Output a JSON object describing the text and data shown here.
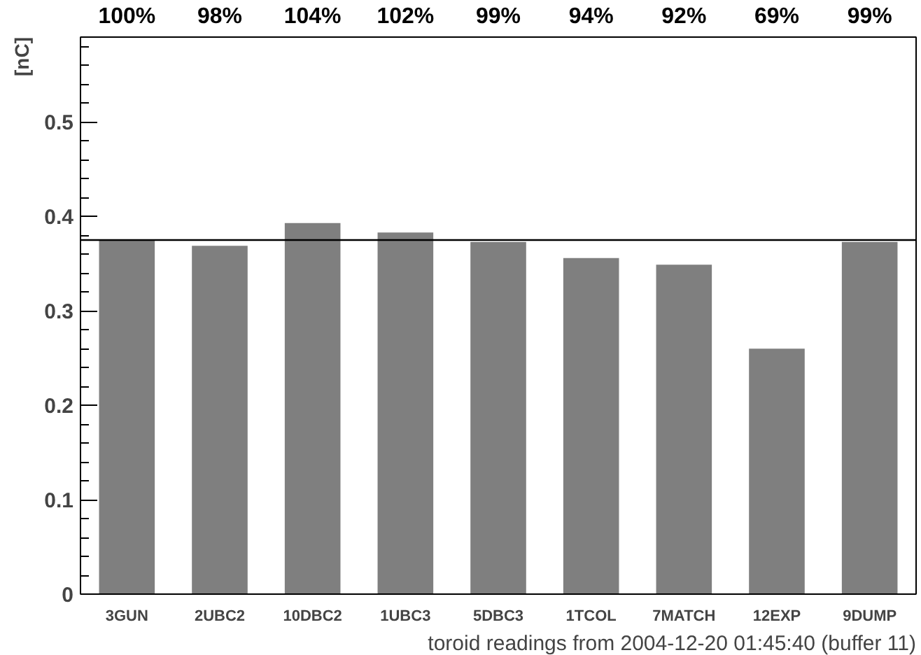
{
  "chart_data": {
    "type": "bar",
    "categories": [
      "3GUN",
      "2UBC2",
      "10DBC2",
      "1UBC3",
      "5DBC3",
      "1TCOL",
      "7MATCH",
      "12EXP",
      "9DUMP"
    ],
    "values": [
      0.375,
      0.369,
      0.393,
      0.383,
      0.373,
      0.356,
      0.349,
      0.26,
      0.373
    ],
    "annotations": [
      "100%",
      "98%",
      "104%",
      "102%",
      "99%",
      "94%",
      "92%",
      "69%",
      "99%"
    ],
    "color": "#7f7f7f",
    "xlabel": "toroid readings from 2004-12-20 01:45:40 (buffer 11)",
    "ylabel": "[nC]",
    "ylim": [
      0,
      0.59
    ],
    "yticks": [
      0,
      0.1,
      0.2,
      0.3,
      0.4,
      0.5
    ],
    "ref_lines": [
      {
        "axis": "y",
        "value": 0.375,
        "label": null,
        "color": "#000000"
      }
    ],
    "grid": false
  }
}
